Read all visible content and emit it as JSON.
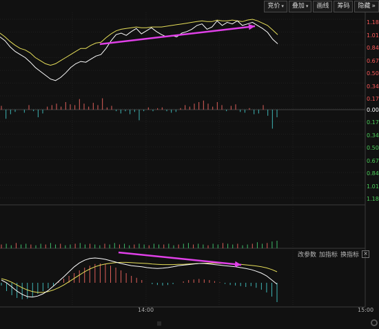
{
  "toolbar": {
    "items": [
      {
        "label": "竞价",
        "has_caret": true
      },
      {
        "label": "叠加",
        "has_caret": true
      },
      {
        "label": "画线",
        "has_caret": false
      },
      {
        "label": "筹码",
        "has_caret": false
      },
      {
        "label": "隐藏",
        "has_caret": false
      }
    ],
    "expand_icon": "double-chevron-right-icon"
  },
  "indicator_toolbar": {
    "items": [
      "改参数",
      "加指标",
      "换指标"
    ],
    "close_icon": "close-icon"
  },
  "axis": {
    "price_labels_upper": [
      "1.18%",
      "1.01%",
      "0.84%",
      "0.67%",
      "0.50%",
      "0.34%",
      "0.17%"
    ],
    "zero_label": "0.00%",
    "price_labels_lower": [
      "0.17%",
      "0.34%",
      "0.50%",
      "0.67%",
      "0.84%",
      "1.01%",
      "1.18%"
    ],
    "time_labels": [
      "14:00",
      "15:00"
    ]
  },
  "colors": {
    "background": "#111111",
    "price_line": "#ffffff",
    "avg_line": "#e8e05a",
    "up": "#e0605a",
    "down": "#3fb7b7",
    "volume_up": "#e0605a",
    "volume_down": "#3fbf6a",
    "annotation_arrow": "#e040e8",
    "positive_label": "#ff5a5a",
    "negative_label": "#4cd05a",
    "zero_label": "#ffffff",
    "grid": "#2c2c2c"
  },
  "chart_data": {
    "type": "line",
    "price": [
      0.95,
      0.9,
      0.82,
      0.76,
      0.72,
      0.68,
      0.62,
      0.55,
      0.5,
      0.45,
      0.4,
      0.38,
      0.42,
      0.48,
      0.55,
      0.6,
      0.63,
      0.62,
      0.66,
      0.7,
      0.72,
      0.8,
      0.9,
      0.98,
      1.0,
      0.97,
      1.02,
      1.06,
      0.99,
      1.03,
      1.07,
      1.02,
      0.98,
      0.95,
      0.97,
      0.95,
      1.0,
      1.02,
      1.05,
      1.1,
      1.12,
      1.05,
      1.08,
      1.16,
      1.1,
      1.14,
      1.12,
      1.16,
      1.1,
      1.12,
      1.14,
      1.1,
      1.06,
      1.01,
      0.92,
      0.86
    ],
    "avg": [
      1.0,
      0.95,
      0.89,
      0.84,
      0.8,
      0.78,
      0.74,
      0.68,
      0.64,
      0.6,
      0.58,
      0.6,
      0.64,
      0.68,
      0.72,
      0.76,
      0.8,
      0.8,
      0.84,
      0.87,
      0.88,
      0.94,
      0.99,
      1.03,
      1.05,
      1.06,
      1.07,
      1.08,
      1.07,
      1.07,
      1.08,
      1.08,
      1.08,
      1.09,
      1.1,
      1.11,
      1.12,
      1.13,
      1.14,
      1.15,
      1.16,
      1.15,
      1.15,
      1.17,
      1.16,
      1.16,
      1.17,
      1.16,
      1.15,
      1.17,
      1.18,
      1.16,
      1.13,
      1.1,
      1.04,
      0.98
    ],
    "change_bars": [
      0.05,
      -0.12,
      -0.06,
      -0.03,
      0.0,
      -0.04,
      0.06,
      -0.02,
      -0.1,
      -0.05,
      0.04,
      0.06,
      0.08,
      0.04,
      0.1,
      0.07,
      0.06,
      0.14,
      0.08,
      0.04,
      0.09,
      0.06,
      0.15,
      0.03,
      0.05,
      -0.02,
      -0.05,
      -0.02,
      -0.06,
      -0.03,
      -0.14,
      -0.02,
      0.03,
      -0.02,
      0.02,
      0.03,
      -0.02,
      -0.04,
      -0.03,
      0.02,
      0.06,
      0.04,
      0.08,
      0.1,
      0.12,
      0.08,
      0.04,
      0.1,
      0.06,
      -0.02,
      0.05,
      0.07,
      -0.03,
      -0.04,
      0.02,
      -0.06,
      -0.05,
      0.06,
      -0.08,
      -0.25,
      -0.1
    ],
    "volume": [
      0.5,
      0.6,
      0.4,
      0.7,
      0.5,
      0.6,
      0.5,
      0.4,
      0.6,
      0.5,
      0.7,
      0.5,
      0.6,
      0.4,
      0.5,
      0.6,
      0.7,
      0.5,
      0.6,
      0.5,
      0.4,
      0.6,
      0.5,
      0.7,
      0.5,
      0.6,
      0.4,
      0.5,
      0.6,
      0.5,
      0.4,
      0.6,
      0.5,
      0.5,
      0.6,
      0.4,
      0.5,
      0.6,
      0.7,
      0.5,
      0.6,
      0.5,
      0.4,
      0.6,
      0.5,
      0.7,
      0.6,
      0.5,
      0.6,
      0.4,
      0.5,
      0.6,
      0.8,
      0.6,
      0.7,
      0.9,
      1.0
    ],
    "macd": [
      -0.1,
      -0.3,
      -0.45,
      -0.55,
      -0.6,
      -0.58,
      -0.5,
      -0.4,
      -0.3,
      -0.2,
      -0.1,
      0.05,
      0.15,
      0.25,
      0.35,
      0.45,
      0.55,
      0.62,
      0.68,
      0.7,
      0.68,
      0.62,
      0.55,
      0.45,
      0.35,
      0.25,
      0.18,
      0.1,
      0.0,
      -0.05,
      -0.08,
      -0.1,
      -0.08,
      -0.05,
      0.0,
      0.05,
      0.1,
      0.12,
      0.14,
      0.12,
      0.1,
      0.06,
      0.02,
      -0.04,
      -0.08,
      -0.1,
      -0.12,
      -0.15,
      -0.12,
      -0.18,
      -0.25,
      -0.35,
      -0.5,
      -0.7
    ],
    "dif": [
      0.1,
      0.0,
      -0.15,
      -0.3,
      -0.42,
      -0.5,
      -0.52,
      -0.48,
      -0.4,
      -0.28,
      -0.12,
      0.05,
      0.22,
      0.4,
      0.58,
      0.72,
      0.82,
      0.88,
      0.9,
      0.88,
      0.85,
      0.8,
      0.75,
      0.7,
      0.66,
      0.62,
      0.6,
      0.58,
      0.55,
      0.53,
      0.52,
      0.53,
      0.55,
      0.58,
      0.62,
      0.64,
      0.66,
      0.68,
      0.7,
      0.7,
      0.68,
      0.66,
      0.64,
      0.62,
      0.6,
      0.58,
      0.55,
      0.52,
      0.48,
      0.42,
      0.35,
      0.25,
      0.1,
      -0.05
    ],
    "dea": [
      0.15,
      0.1,
      0.02,
      -0.08,
      -0.18,
      -0.26,
      -0.32,
      -0.35,
      -0.35,
      -0.32,
      -0.26,
      -0.18,
      -0.08,
      0.04,
      0.16,
      0.28,
      0.4,
      0.5,
      0.58,
      0.64,
      0.68,
      0.71,
      0.73,
      0.74,
      0.74,
      0.73,
      0.72,
      0.71,
      0.7,
      0.68,
      0.67,
      0.66,
      0.66,
      0.66,
      0.67,
      0.67,
      0.68,
      0.69,
      0.7,
      0.71,
      0.71,
      0.71,
      0.7,
      0.7,
      0.69,
      0.68,
      0.67,
      0.65,
      0.63,
      0.61,
      0.58,
      0.54,
      0.48,
      0.4
    ]
  }
}
